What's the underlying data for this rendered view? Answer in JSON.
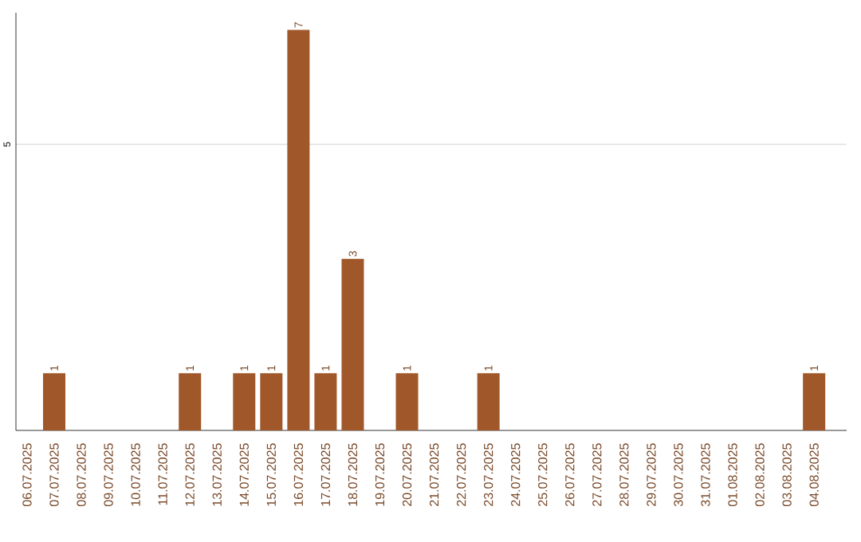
{
  "chart_data": {
    "type": "bar",
    "categories": [
      "06.07.2025",
      "07.07.2025",
      "08.07.2025",
      "09.07.2025",
      "10.07.2025",
      "11.07.2025",
      "12.07.2025",
      "13.07.2025",
      "14.07.2025",
      "15.07.2025",
      "16.07.2025",
      "17.07.2025",
      "18.07.2025",
      "19.07.2025",
      "20.07.2025",
      "21.07.2025",
      "22.07.2025",
      "23.07.2025",
      "24.07.2025",
      "25.07.2025",
      "26.07.2025",
      "27.07.2025",
      "28.07.2025",
      "29.07.2025",
      "30.07.2025",
      "31.07.2025",
      "01.08.2025",
      "02.08.2025",
      "03.08.2025",
      "04.08.2025"
    ],
    "values": [
      0,
      1,
      0,
      0,
      0,
      0,
      1,
      0,
      1,
      1,
      7,
      1,
      3,
      0,
      1,
      0,
      0,
      1,
      0,
      0,
      0,
      0,
      0,
      0,
      0,
      0,
      0,
      0,
      0,
      1
    ],
    "value_labels": [
      null,
      "1",
      null,
      null,
      null,
      null,
      "1",
      null,
      "1",
      "1",
      "7",
      "1",
      "3",
      null,
      "1",
      null,
      null,
      "1",
      null,
      null,
      null,
      null,
      null,
      null,
      null,
      null,
      null,
      null,
      null,
      "1"
    ],
    "color": "#a0582a",
    "ylim": [
      0,
      7.3
    ],
    "yticks": [
      5
    ],
    "grid": "y"
  }
}
